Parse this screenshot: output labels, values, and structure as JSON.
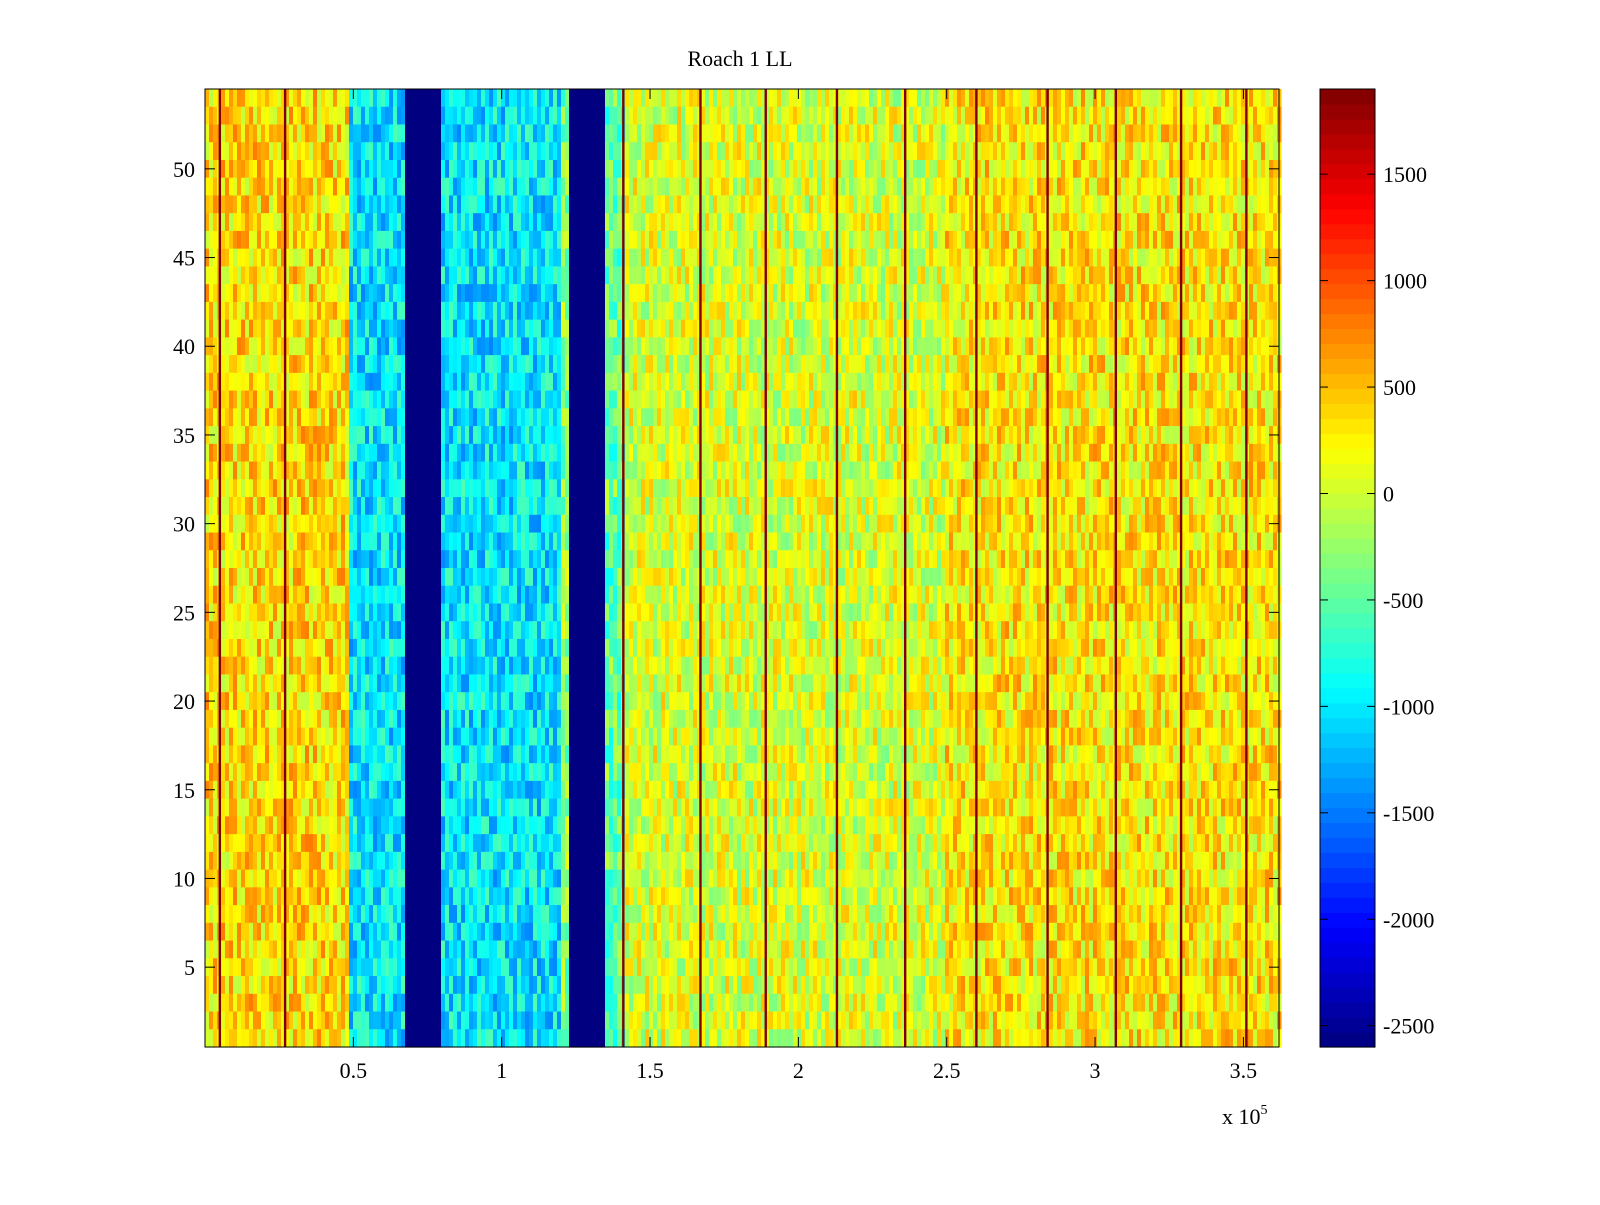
{
  "chart_data": {
    "type": "heatmap",
    "title": "Roach 1 LL",
    "xlabel": "",
    "ylabel": "",
    "x_multiplier_label": "x 10",
    "x_multiplier_exponent": "5",
    "xlim": [
      0,
      3.62
    ],
    "ylim": [
      0.5,
      54.5
    ],
    "x_ticks": [
      0.5,
      1,
      1.5,
      2,
      2.5,
      3,
      3.5
    ],
    "x_tick_labels": [
      "0.5",
      "1",
      "1.5",
      "2",
      "2.5",
      "3",
      "3.5"
    ],
    "y_ticks": [
      5,
      10,
      15,
      20,
      25,
      30,
      35,
      40,
      45,
      50
    ],
    "y_tick_labels": [
      "5",
      "10",
      "15",
      "20",
      "25",
      "30",
      "35",
      "40",
      "45",
      "50"
    ],
    "rows": 54,
    "colorbar": {
      "colormap": "jet",
      "clim": [
        -2600,
        1900
      ],
      "ticks": [
        -2500,
        -2000,
        -1500,
        -1000,
        -500,
        0,
        500,
        1000,
        1500
      ],
      "tick_labels": [
        "-2500",
        "-2000",
        "-1500",
        "-1000",
        "-500",
        "0",
        "500",
        "1000",
        "1500"
      ]
    },
    "column_bands": [
      {
        "x_start": 0.0,
        "x_end": 0.48,
        "mean_value": 350
      },
      {
        "x_start": 0.48,
        "x_end": 0.68,
        "mean_value": -1000
      },
      {
        "x_start": 0.68,
        "x_end": 0.8,
        "mean_value": -2600
      },
      {
        "x_start": 0.8,
        "x_end": 1.2,
        "mean_value": -1000
      },
      {
        "x_start": 1.2,
        "x_end": 1.23,
        "mean_value": -300
      },
      {
        "x_start": 1.23,
        "x_end": 1.35,
        "mean_value": -2600
      },
      {
        "x_start": 1.35,
        "x_end": 1.42,
        "mean_value": -450
      },
      {
        "x_start": 1.42,
        "x_end": 2.5,
        "mean_value": 50
      },
      {
        "x_start": 2.5,
        "x_end": 3.62,
        "mean_value": 300
      }
    ],
    "spike_lines_x": [
      0.05,
      0.27,
      1.41,
      1.67,
      1.89,
      2.13,
      2.36,
      2.6,
      2.84,
      3.07,
      3.29,
      3.51
    ],
    "grid": false,
    "legend": "none"
  }
}
